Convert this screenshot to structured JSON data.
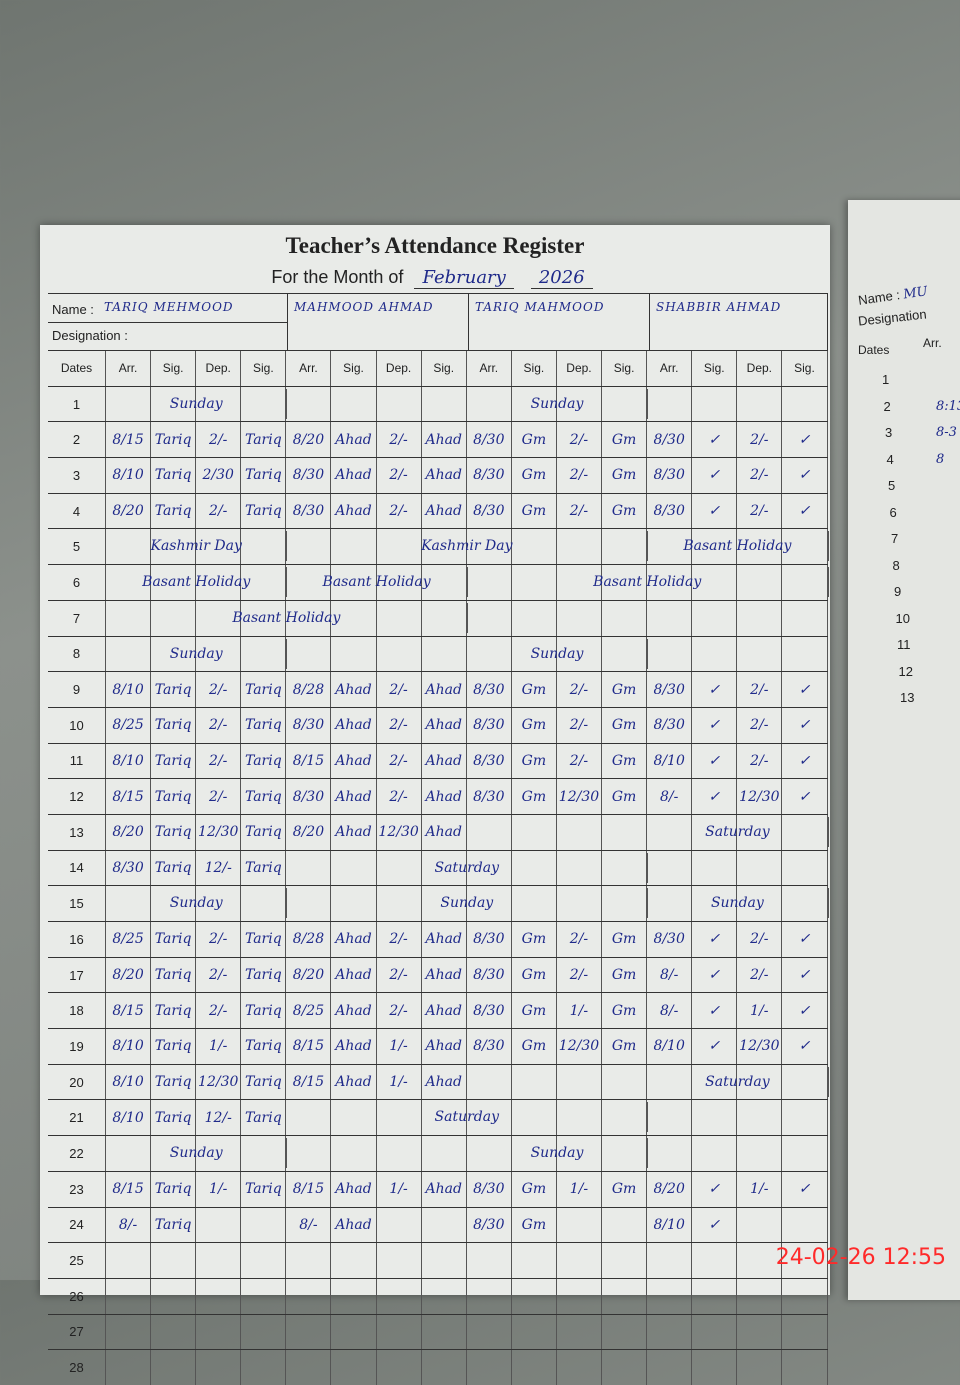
{
  "register": {
    "title": "Teacher’s Attendance Register",
    "month_label": "For the Month of",
    "month": "February",
    "year": "2026",
    "name_label": "Name :",
    "designation_label": "Designation :",
    "teachers": [
      "TARIQ MEHMOOD",
      "MAHMOOD AHMAD",
      "TARIQ MAHMOOD",
      "SHABBIR AHMAD"
    ],
    "columns": [
      "Dates",
      "Arr.",
      "Sig.",
      "Dep.",
      "Sig.",
      "Arr.",
      "Sig.",
      "Dep.",
      "Sig.",
      "Arr.",
      "Sig.",
      "Dep.",
      "Sig.",
      "Arr.",
      "Sig.",
      "Dep.",
      "Sig."
    ],
    "rows": [
      {
        "date": "1",
        "cells": [
          "",
          "",
          "",
          "",
          "",
          "",
          "",
          "",
          "",
          "",
          "",
          "",
          "",
          "",
          "",
          ""
        ],
        "notes": [
          {
            "text": "Sunday",
            "group": 0,
            "span": 1
          },
          {
            "text": "Sunday",
            "group": 2,
            "span": 1
          }
        ]
      },
      {
        "date": "2",
        "cells": [
          "8/15",
          "Tariq",
          "2/-",
          "Tariq",
          "8/20",
          "Ahad",
          "2/-",
          "Ahad",
          "8/30",
          "Gm",
          "2/-",
          "Gm",
          "8/30",
          "✓",
          "2/-",
          "✓"
        ],
        "notes": []
      },
      {
        "date": "3",
        "cells": [
          "8/10",
          "Tariq",
          "2/30",
          "Tariq",
          "8/30",
          "Ahad",
          "2/-",
          "Ahad",
          "8/30",
          "Gm",
          "2/-",
          "Gm",
          "8/30",
          "✓",
          "2/-",
          "✓"
        ],
        "notes": []
      },
      {
        "date": "4",
        "cells": [
          "8/20",
          "Tariq",
          "2/-",
          "Tariq",
          "8/30",
          "Ahad",
          "2/-",
          "Ahad",
          "8/30",
          "Gm",
          "2/-",
          "Gm",
          "8/30",
          "✓",
          "2/-",
          "✓"
        ],
        "notes": []
      },
      {
        "date": "5",
        "cells": [
          "",
          "",
          "",
          "",
          "",
          "",
          "",
          "",
          "",
          "",
          "",
          "",
          "",
          "",
          "",
          ""
        ],
        "notes": [
          {
            "text": "Kashmir Day",
            "group": 0,
            "span": 1
          },
          {
            "text": "Kashmir Day",
            "group": 1,
            "span": 2
          },
          {
            "text": "Basant Holiday",
            "group": 3,
            "span": 1
          }
        ]
      },
      {
        "date": "6",
        "cells": [
          "",
          "",
          "",
          "",
          "",
          "",
          "",
          "",
          "",
          "",
          "",
          "",
          "",
          "",
          "",
          ""
        ],
        "notes": [
          {
            "text": "Basant Holiday",
            "group": 0,
            "span": 1
          },
          {
            "text": "Basant Holiday",
            "group": 1,
            "span": 1
          },
          {
            "text": "Basant Holiday",
            "group": 2,
            "span": 2
          }
        ]
      },
      {
        "date": "7",
        "cells": [
          "",
          "",
          "",
          "",
          "",
          "",
          "",
          "",
          "",
          "",
          "",
          "",
          "",
          "",
          "",
          ""
        ],
        "notes": [
          {
            "text": "Basant Holiday",
            "group": 0,
            "span": 2
          }
        ]
      },
      {
        "date": "8",
        "cells": [
          "",
          "",
          "",
          "",
          "",
          "",
          "",
          "",
          "",
          "",
          "",
          "",
          "",
          "",
          "",
          ""
        ],
        "notes": [
          {
            "text": "Sunday",
            "group": 0,
            "span": 1
          },
          {
            "text": "Sunday",
            "group": 2,
            "span": 1
          }
        ]
      },
      {
        "date": "9",
        "cells": [
          "8/10",
          "Tariq",
          "2/-",
          "Tariq",
          "8/28",
          "Ahad",
          "2/-",
          "Ahad",
          "8/30",
          "Gm",
          "2/-",
          "Gm",
          "8/30",
          "✓",
          "2/-",
          "✓"
        ],
        "notes": []
      },
      {
        "date": "10",
        "cells": [
          "8/25",
          "Tariq",
          "2/-",
          "Tariq",
          "8/30",
          "Ahad",
          "2/-",
          "Ahad",
          "8/30",
          "Gm",
          "2/-",
          "Gm",
          "8/30",
          "✓",
          "2/-",
          "✓"
        ],
        "notes": []
      },
      {
        "date": "11",
        "cells": [
          "8/10",
          "Tariq",
          "2/-",
          "Tariq",
          "8/15",
          "Ahad",
          "2/-",
          "Ahad",
          "8/30",
          "Gm",
          "2/-",
          "Gm",
          "8/10",
          "✓",
          "2/-",
          "✓"
        ],
        "notes": []
      },
      {
        "date": "12",
        "cells": [
          "8/15",
          "Tariq",
          "2/-",
          "Tariq",
          "8/30",
          "Ahad",
          "2/-",
          "Ahad",
          "8/30",
          "Gm",
          "12/30",
          "Gm",
          "8/-",
          "✓",
          "12/30",
          "✓"
        ],
        "notes": []
      },
      {
        "date": "13",
        "cells": [
          "8/20",
          "Tariq",
          "12/30",
          "Tariq",
          "8/20",
          "Ahad",
          "12/30",
          "Ahad",
          "",
          "",
          "",
          "",
          "",
          "",
          "",
          ""
        ],
        "notes": [
          {
            "text": "Saturday",
            "group": 3,
            "span": 1
          }
        ]
      },
      {
        "date": "14",
        "cells": [
          "8/30",
          "Tariq",
          "12/-",
          "Tariq",
          "",
          "",
          "",
          "",
          "",
          "",
          "",
          "",
          "",
          "",
          "",
          ""
        ],
        "notes": [
          {
            "text": "Saturday",
            "group": 1,
            "span": 2
          }
        ]
      },
      {
        "date": "15",
        "cells": [
          "",
          "",
          "",
          "",
          "",
          "",
          "",
          "",
          "",
          "",
          "",
          "",
          "",
          "",
          "",
          ""
        ],
        "notes": [
          {
            "text": "Sunday",
            "group": 0,
            "span": 1
          },
          {
            "text": "Sunday",
            "group": 1,
            "span": 2
          },
          {
            "text": "Sunday",
            "group": 3,
            "span": 1
          }
        ]
      },
      {
        "date": "16",
        "cells": [
          "8/25",
          "Tariq",
          "2/-",
          "Tariq",
          "8/28",
          "Ahad",
          "2/-",
          "Ahad",
          "8/30",
          "Gm",
          "2/-",
          "Gm",
          "8/30",
          "✓",
          "2/-",
          "✓"
        ],
        "notes": []
      },
      {
        "date": "17",
        "cells": [
          "8/20",
          "Tariq",
          "2/-",
          "Tariq",
          "8/20",
          "Ahad",
          "2/-",
          "Ahad",
          "8/30",
          "Gm",
          "2/-",
          "Gm",
          "8/-",
          "✓",
          "2/-",
          "✓"
        ],
        "notes": []
      },
      {
        "date": "18",
        "cells": [
          "8/15",
          "Tariq",
          "2/-",
          "Tariq",
          "8/25",
          "Ahad",
          "2/-",
          "Ahad",
          "8/30",
          "Gm",
          "1/-",
          "Gm",
          "8/-",
          "✓",
          "1/-",
          "✓"
        ],
        "notes": []
      },
      {
        "date": "19",
        "cells": [
          "8/10",
          "Tariq",
          "1/-",
          "Tariq",
          "8/15",
          "Ahad",
          "1/-",
          "Ahad",
          "8/30",
          "Gm",
          "12/30",
          "Gm",
          "8/10",
          "✓",
          "12/30",
          "✓"
        ],
        "notes": []
      },
      {
        "date": "20",
        "cells": [
          "8/10",
          "Tariq",
          "12/30",
          "Tariq",
          "8/15",
          "Ahad",
          "1/-",
          "Ahad",
          "",
          "",
          "",
          "",
          "",
          "",
          "",
          ""
        ],
        "notes": [
          {
            "text": "Saturday",
            "group": 3,
            "span": 1
          }
        ]
      },
      {
        "date": "21",
        "cells": [
          "8/10",
          "Tariq",
          "12/-",
          "Tariq",
          "",
          "",
          "",
          "",
          "",
          "",
          "",
          "",
          "",
          "",
          "",
          ""
        ],
        "notes": [
          {
            "text": "Saturday",
            "group": 1,
            "span": 2
          }
        ]
      },
      {
        "date": "22",
        "cells": [
          "",
          "",
          "",
          "",
          "",
          "",
          "",
          "",
          "",
          "",
          "",
          "",
          "",
          "",
          "",
          ""
        ],
        "notes": [
          {
            "text": "Sunday",
            "group": 0,
            "span": 1
          },
          {
            "text": "Sunday",
            "group": 2,
            "span": 1
          }
        ]
      },
      {
        "date": "23",
        "cells": [
          "8/15",
          "Tariq",
          "1/-",
          "Tariq",
          "8/15",
          "Ahad",
          "1/-",
          "Ahad",
          "8/30",
          "Gm",
          "1/-",
          "Gm",
          "8/20",
          "✓",
          "1/-",
          "✓"
        ],
        "notes": []
      },
      {
        "date": "24",
        "cells": [
          "8/-",
          "Tariq",
          "",
          "",
          "8/-",
          "Ahad",
          "",
          "",
          "8/30",
          "Gm",
          "",
          "",
          "8/10",
          "✓",
          "",
          ""
        ],
        "notes": []
      },
      {
        "date": "25",
        "cells": [
          "",
          "",
          "",
          "",
          "",
          "",
          "",
          "",
          "",
          "",
          "",
          "",
          "",
          "",
          "",
          ""
        ],
        "notes": []
      },
      {
        "date": "26",
        "cells": [
          "",
          "",
          "",
          "",
          "",
          "",
          "",
          "",
          "",
          "",
          "",
          "",
          "",
          "",
          "",
          ""
        ],
        "notes": []
      },
      {
        "date": "27",
        "cells": [
          "",
          "",
          "",
          "",
          "",
          "",
          "",
          "",
          "",
          "",
          "",
          "",
          "",
          "",
          "",
          ""
        ],
        "notes": []
      },
      {
        "date": "28",
        "cells": [
          "",
          "",
          "",
          "",
          "",
          "",
          "",
          "",
          "",
          "",
          "",
          "",
          "",
          "",
          "",
          ""
        ],
        "notes": []
      }
    ]
  },
  "right_page": {
    "name_label": "Name :",
    "name_partial": "MU",
    "designation_label": "Designation",
    "dates_label": "Dates",
    "arr_label": "Arr.",
    "dates": [
      "1",
      "2",
      "3",
      "4",
      "5",
      "6",
      "7",
      "8",
      "9",
      "10",
      "11",
      "12",
      "13"
    ],
    "arr_values": [
      "",
      "8:13",
      "8-3",
      "8",
      "",
      "",
      "",
      "",
      "",
      "",
      "",
      "",
      ""
    ]
  },
  "timestamp": "24-02-26  12:55",
  "colors": {
    "blue_ink": "#1f2a8a",
    "red_ink": "#c0404a",
    "timestamp": "#ff2a2a"
  }
}
